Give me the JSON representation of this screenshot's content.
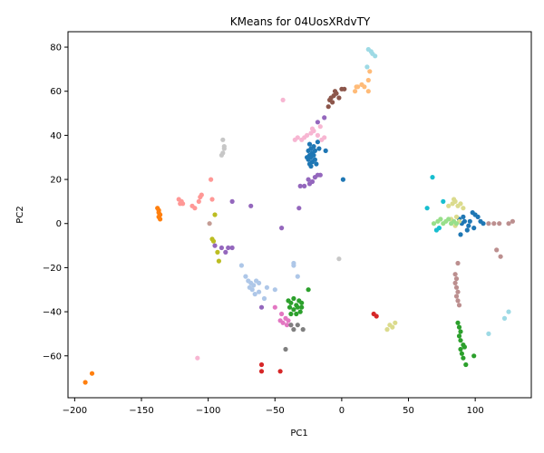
{
  "chart_data": {
    "type": "scatter",
    "title": "KMeans for 04UosXRdvTY",
    "xlabel": "PC1",
    "ylabel": "PC2",
    "xlim": [
      -205,
      142
    ],
    "ylim": [
      -79,
      87
    ],
    "xticks": [
      -200,
      -150,
      -100,
      -50,
      0,
      50,
      100
    ],
    "yticks": [
      -60,
      -40,
      -20,
      0,
      20,
      40,
      60,
      80
    ],
    "grid": false,
    "legend": "none",
    "series": [
      {
        "color": "#1f77b4",
        "points": [
          [
            -24,
            36
          ],
          [
            -23,
            34
          ],
          [
            -25,
            33
          ],
          [
            -22,
            32
          ],
          [
            -24,
            31
          ],
          [
            -23,
            30
          ],
          [
            -21,
            31
          ],
          [
            -25,
            29
          ],
          [
            -22,
            28
          ],
          [
            -24,
            27
          ],
          [
            -20,
            29
          ],
          [
            -19,
            27
          ],
          [
            -23,
            26
          ],
          [
            -21,
            35
          ],
          [
            -18,
            37
          ],
          [
            -17,
            34
          ],
          [
            -12,
            33
          ],
          [
            1,
            20
          ],
          [
            -26,
            30
          ],
          [
            -20,
            33
          ]
        ]
      },
      {
        "color": "#1f77b4",
        "points": [
          [
            88,
            2
          ],
          [
            90,
            0
          ],
          [
            92,
            1
          ],
          [
            95,
            -1
          ],
          [
            98,
            5
          ],
          [
            100,
            4
          ],
          [
            102,
            3
          ],
          [
            104,
            1
          ],
          [
            106,
            0
          ],
          [
            99,
            -2
          ],
          [
            94,
            -3
          ],
          [
            89,
            -5
          ],
          [
            96,
            1
          ],
          [
            91,
            3
          ]
        ]
      },
      {
        "color": "#ff7f0e",
        "points": [
          [
            -138,
            7
          ],
          [
            -137,
            6
          ],
          [
            -137,
            5
          ],
          [
            -136,
            4
          ],
          [
            -137,
            3
          ],
          [
            -136,
            2
          ],
          [
            -187,
            -68
          ],
          [
            -192,
            -72
          ]
        ]
      },
      {
        "color": "#2ca02c",
        "points": [
          [
            -40,
            -35
          ],
          [
            -38,
            -36
          ],
          [
            -36,
            -34
          ],
          [
            -34,
            -37
          ],
          [
            -32,
            -35
          ],
          [
            -30,
            -36
          ],
          [
            -39,
            -38
          ],
          [
            -36,
            -39
          ],
          [
            -33,
            -38
          ],
          [
            -31,
            -40
          ],
          [
            -38,
            -41
          ],
          [
            -34,
            -41
          ],
          [
            -25,
            -30
          ],
          [
            -30,
            -38
          ]
        ]
      },
      {
        "color": "#2ca02c",
        "points": [
          [
            87,
            -45
          ],
          [
            88,
            -47
          ],
          [
            89,
            -49
          ],
          [
            88,
            -51
          ],
          [
            89,
            -53
          ],
          [
            91,
            -55
          ],
          [
            92,
            -56
          ],
          [
            89,
            -57
          ],
          [
            90,
            -59
          ],
          [
            91,
            -61
          ],
          [
            93,
            -64
          ],
          [
            99,
            -60
          ]
        ]
      },
      {
        "color": "#d62728",
        "points": [
          [
            -60,
            -64
          ],
          [
            -60,
            -67
          ],
          [
            -46,
            -67
          ],
          [
            24,
            -41
          ],
          [
            26,
            -42
          ]
        ]
      },
      {
        "color": "#9467bd",
        "points": [
          [
            -20,
            21
          ],
          [
            -18,
            22
          ],
          [
            -16,
            22
          ],
          [
            -22,
            19
          ],
          [
            -24,
            18
          ],
          [
            -28,
            17
          ],
          [
            -31,
            17
          ],
          [
            -25,
            20
          ],
          [
            -82,
            10
          ],
          [
            -68,
            8
          ],
          [
            -32,
            7
          ],
          [
            -45,
            -2
          ],
          [
            -18,
            46
          ],
          [
            -13,
            48
          ]
        ]
      },
      {
        "color": "#9467bd",
        "points": [
          [
            -95,
            -10
          ],
          [
            -90,
            -11
          ],
          [
            -85,
            -11
          ],
          [
            -87,
            -13
          ],
          [
            -82,
            -11
          ],
          [
            -60,
            -38
          ]
        ]
      },
      {
        "color": "#8c564b",
        "points": [
          [
            -10,
            53
          ],
          [
            -9,
            56
          ],
          [
            -8,
            57
          ],
          [
            -6,
            58
          ],
          [
            -5,
            60
          ],
          [
            -4,
            59
          ],
          [
            -2,
            57
          ],
          [
            0,
            61
          ],
          [
            2,
            61
          ],
          [
            -7,
            55
          ]
        ]
      },
      {
        "color": "#bc8f8f",
        "points": [
          [
            85,
            -23
          ],
          [
            86,
            -25
          ],
          [
            85,
            -27
          ],
          [
            86,
            -29
          ],
          [
            87,
            -31
          ],
          [
            86,
            -33
          ],
          [
            87,
            -35
          ],
          [
            88,
            -37
          ],
          [
            87,
            -18
          ],
          [
            110,
            0
          ],
          [
            114,
            0
          ],
          [
            118,
            0
          ],
          [
            125,
            0
          ],
          [
            128,
            1
          ],
          [
            116,
            -12
          ],
          [
            119,
            -15
          ]
        ]
      },
      {
        "color": "#e377c2",
        "points": [
          [
            -50,
            -38
          ],
          [
            -45,
            -41
          ],
          [
            -42,
            -43
          ],
          [
            -40,
            -44
          ],
          [
            -38,
            -46
          ],
          [
            -44,
            -45
          ],
          [
            -46,
            -44
          ],
          [
            -41,
            -46
          ]
        ]
      },
      {
        "color": "#f7b6d2",
        "points": [
          [
            -35,
            38
          ],
          [
            -33,
            39
          ],
          [
            -30,
            38
          ],
          [
            -28,
            39
          ],
          [
            -26,
            40
          ],
          [
            -23,
            41
          ],
          [
            -21,
            42
          ],
          [
            -18,
            40
          ],
          [
            -15,
            38
          ],
          [
            -13,
            39
          ],
          [
            -22,
            43
          ],
          [
            -16,
            44
          ],
          [
            -44,
            56
          ],
          [
            -108,
            -61
          ]
        ]
      },
      {
        "color": "#7f7f7f",
        "points": [
          [
            -38,
            -46
          ],
          [
            -36,
            -48
          ],
          [
            -33,
            -46
          ],
          [
            -29,
            -48
          ],
          [
            -42,
            -57
          ]
        ]
      },
      {
        "color": "#bcbd22",
        "points": [
          [
            -97,
            -7
          ],
          [
            -96,
            -8
          ],
          [
            -95,
            4
          ],
          [
            -93,
            -13
          ],
          [
            -92,
            -17
          ]
        ]
      },
      {
        "color": "#dbdb8d",
        "points": [
          [
            80,
            8
          ],
          [
            83,
            9
          ],
          [
            85,
            10
          ],
          [
            87,
            8
          ],
          [
            89,
            9
          ],
          [
            91,
            7
          ],
          [
            84,
            11
          ],
          [
            86,
            3
          ],
          [
            82,
            2
          ],
          [
            88,
            1
          ],
          [
            85,
            -1
          ],
          [
            34,
            -48
          ],
          [
            36,
            -46
          ],
          [
            38,
            -47
          ],
          [
            40,
            -45
          ]
        ]
      },
      {
        "color": "#17becf",
        "points": [
          [
            68,
            21
          ],
          [
            64,
            7
          ],
          [
            71,
            -3
          ],
          [
            73,
            -2
          ],
          [
            76,
            10
          ]
        ]
      },
      {
        "color": "#9edae5",
        "points": [
          [
            20,
            79
          ],
          [
            22,
            78
          ],
          [
            23,
            77
          ],
          [
            25,
            76
          ],
          [
            19,
            71
          ],
          [
            125,
            -40
          ],
          [
            122,
            -43
          ],
          [
            110,
            -50
          ]
        ]
      },
      {
        "color": "#ffbb78",
        "points": [
          [
            10,
            60
          ],
          [
            12,
            62
          ],
          [
            15,
            63
          ],
          [
            17,
            62
          ],
          [
            20,
            65
          ],
          [
            21,
            69
          ],
          [
            20,
            60
          ],
          [
            11,
            62
          ]
        ]
      },
      {
        "color": "#98df8a",
        "points": [
          [
            69,
            0
          ],
          [
            72,
            1
          ],
          [
            74,
            2
          ],
          [
            76,
            0
          ],
          [
            78,
            1
          ],
          [
            80,
            2
          ],
          [
            82,
            0
          ],
          [
            84,
            1
          ],
          [
            86,
            0
          ]
        ]
      },
      {
        "color": "#ff9896",
        "points": [
          [
            -122,
            11
          ],
          [
            -120,
            10
          ],
          [
            -119,
            9
          ],
          [
            -112,
            8
          ],
          [
            -110,
            7
          ],
          [
            -107,
            10
          ],
          [
            -106,
            12
          ],
          [
            -105,
            13
          ],
          [
            -98,
            20
          ],
          [
            -97,
            11
          ],
          [
            -121,
            9
          ]
        ]
      },
      {
        "color": "#aec7e8",
        "points": [
          [
            -72,
            -24
          ],
          [
            -70,
            -26
          ],
          [
            -68,
            -27
          ],
          [
            -66,
            -28
          ],
          [
            -64,
            -26
          ],
          [
            -62,
            -27
          ],
          [
            -69,
            -29
          ],
          [
            -67,
            -30
          ],
          [
            -65,
            -32
          ],
          [
            -62,
            -31
          ],
          [
            -56,
            -29
          ],
          [
            -50,
            -30
          ],
          [
            -36,
            -19
          ],
          [
            -36,
            -18
          ],
          [
            -33,
            -24
          ],
          [
            -58,
            -34
          ],
          [
            -75,
            -19
          ]
        ]
      },
      {
        "color": "#c7c7c7",
        "points": [
          [
            -89,
            38
          ],
          [
            -88,
            35
          ],
          [
            -88,
            34
          ],
          [
            -89,
            32
          ],
          [
            -90,
            31
          ],
          [
            -2,
            -16
          ]
        ]
      },
      {
        "color": "#c49c94",
        "points": [
          [
            -99,
            0
          ]
        ]
      }
    ]
  }
}
